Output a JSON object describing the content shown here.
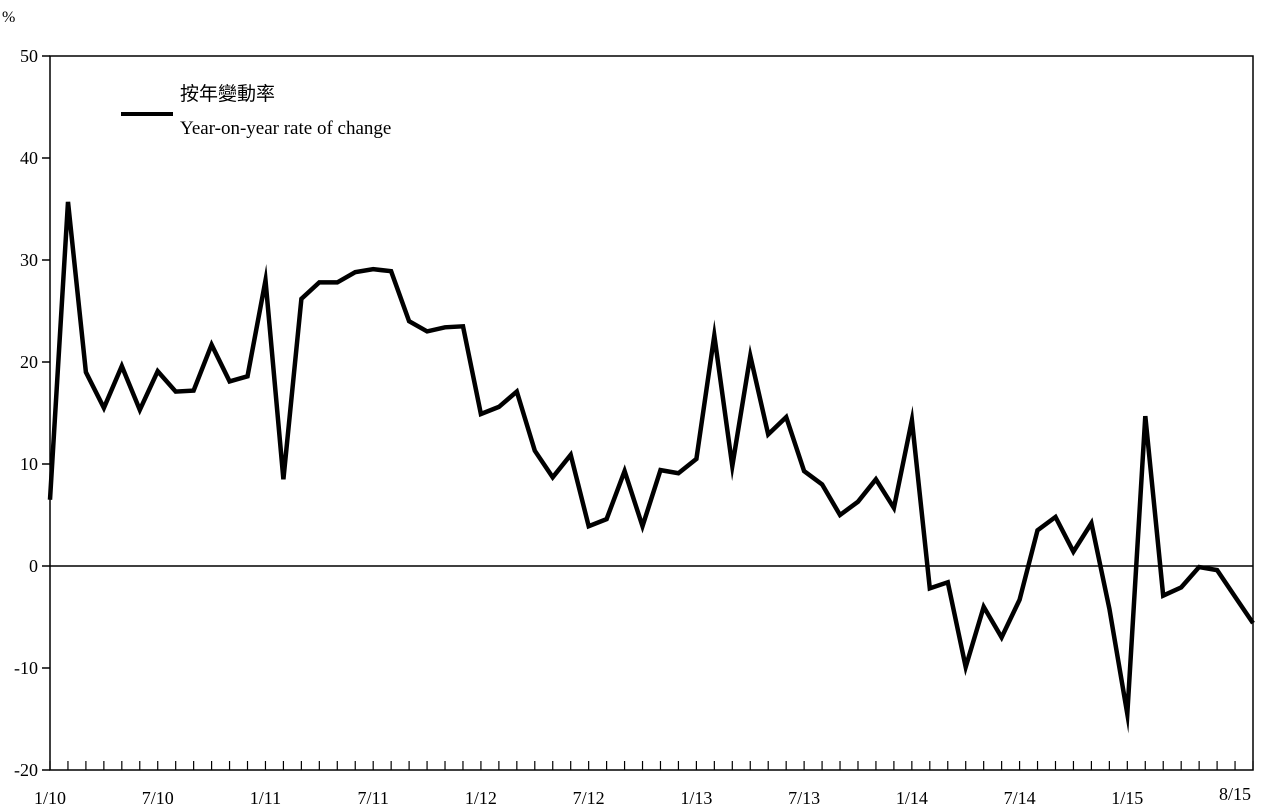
{
  "chart_data": {
    "type": "line",
    "unit_label": "%",
    "ylim": [
      -20,
      50
    ],
    "yticks": [
      -20,
      -10,
      0,
      10,
      20,
      30,
      40,
      50
    ],
    "xlim": [
      "2010-01",
      "2015-08"
    ],
    "xtick_labels": [
      {
        "label": "1/10",
        "x": "2010-01"
      },
      {
        "label": "7/10",
        "x": "2010-07"
      },
      {
        "label": "1/11",
        "x": "2011-01"
      },
      {
        "label": "7/11",
        "x": "2011-07"
      },
      {
        "label": "1/12",
        "x": "2012-01"
      },
      {
        "label": "7/12",
        "x": "2012-07"
      },
      {
        "label": "1/13",
        "x": "2013-01"
      },
      {
        "label": "7/13",
        "x": "2013-07"
      },
      {
        "label": "1/14",
        "x": "2014-01"
      },
      {
        "label": "7/14",
        "x": "2014-07"
      },
      {
        "label": "1/15",
        "x": "2015-01"
      },
      {
        "label": "8/15",
        "x": "2015-08"
      }
    ],
    "zero_line": true,
    "grid": false,
    "legend": {
      "position": "top-left",
      "label_zh": "按年變動率",
      "label_en": "Year-on-year rate of change"
    },
    "series": [
      {
        "name": "按年變動率 Year-on-year rate of change",
        "color": "#000000",
        "x": [
          "2010-01",
          "2010-02",
          "2010-03",
          "2010-04",
          "2010-05",
          "2010-06",
          "2010-07",
          "2010-08",
          "2010-09",
          "2010-10",
          "2010-11",
          "2010-12",
          "2011-01",
          "2011-02",
          "2011-03",
          "2011-04",
          "2011-05",
          "2011-06",
          "2011-07",
          "2011-08",
          "2011-09",
          "2011-10",
          "2011-11",
          "2011-12",
          "2012-01",
          "2012-02",
          "2012-03",
          "2012-04",
          "2012-05",
          "2012-06",
          "2012-07",
          "2012-08",
          "2012-09",
          "2012-10",
          "2012-11",
          "2012-12",
          "2013-01",
          "2013-02",
          "2013-03",
          "2013-04",
          "2013-05",
          "2013-06",
          "2013-07",
          "2013-08",
          "2013-09",
          "2013-10",
          "2013-11",
          "2013-12",
          "2014-01",
          "2014-02",
          "2014-03",
          "2014-04",
          "2014-05",
          "2014-06",
          "2014-07",
          "2014-08",
          "2014-09",
          "2014-10",
          "2014-11",
          "2014-12",
          "2015-01",
          "2015-02",
          "2015-03",
          "2015-04",
          "2015-05",
          "2015-06",
          "2015-07",
          "2015-08"
        ],
        "values": [
          6.5,
          35.7,
          19.0,
          15.5,
          19.6,
          15.3,
          19.1,
          17.1,
          17.2,
          21.7,
          18.1,
          18.6,
          28.0,
          8.5,
          26.2,
          27.8,
          27.8,
          28.8,
          29.1,
          28.9,
          24.0,
          23.0,
          23.4,
          23.5,
          14.9,
          15.6,
          17.1,
          11.3,
          8.7,
          10.9,
          3.9,
          4.6,
          9.3,
          3.9,
          9.4,
          9.1,
          10.5,
          22.6,
          9.8,
          20.6,
          12.9,
          14.6,
          9.3,
          8.0,
          5.0,
          6.3,
          8.5,
          5.7,
          14.3,
          -2.2,
          -1.6,
          -9.9,
          -4.0,
          -7.0,
          -3.3,
          3.5,
          4.8,
          1.4,
          4.2,
          -4.2,
          -14.5,
          14.7,
          -2.9,
          -2.1,
          -0.1,
          -0.4,
          -3.0,
          -5.6
        ]
      }
    ]
  }
}
